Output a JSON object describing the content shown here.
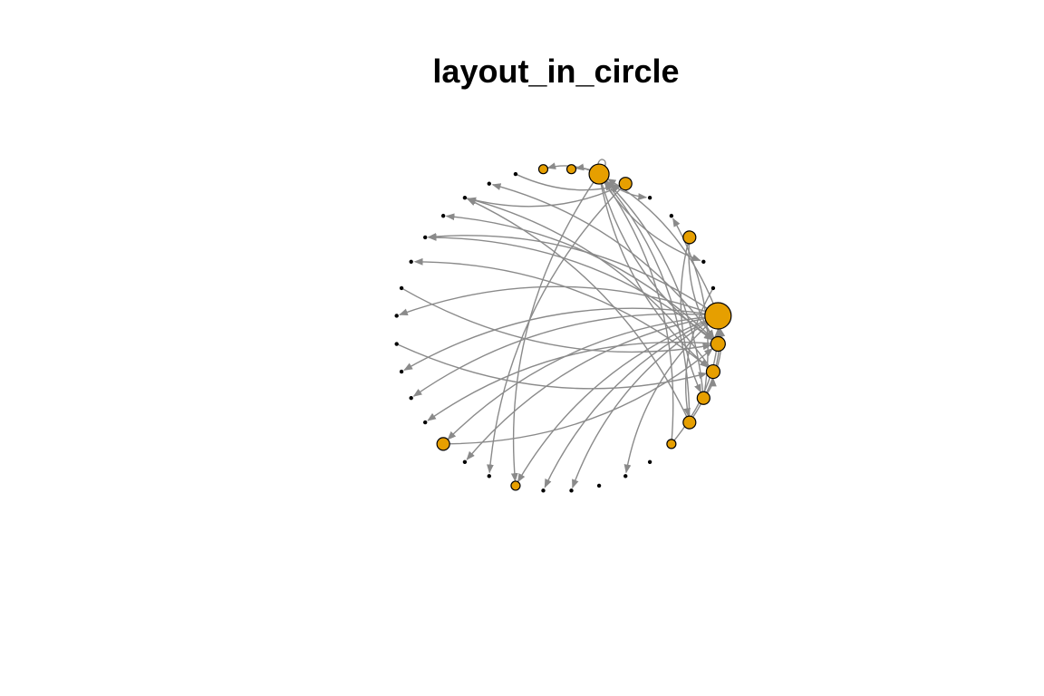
{
  "title": "layout_in_circle",
  "colors": {
    "vertex_fill": "#E69F00",
    "vertex_border": "#000000",
    "edge": "#8A8A8A",
    "background": "#FFFFFF"
  },
  "graph": {
    "layout": "circle",
    "node_count": 36,
    "nodes": [
      {
        "id": 0,
        "size": 2.5
      },
      {
        "id": 1,
        "size": 1.2
      },
      {
        "id": 2,
        "size": 1.1
      },
      {
        "id": 3,
        "size": 1.0
      },
      {
        "id": 4,
        "size": 1.0
      },
      {
        "id": 5,
        "size": 0.6
      },
      {
        "id": 6,
        "size": 0.4
      },
      {
        "id": 7,
        "size": 0.4
      },
      {
        "id": 8,
        "size": 0.3
      },
      {
        "id": 9,
        "size": 0.3
      },
      {
        "id": 10,
        "size": 0.4
      },
      {
        "id": 11,
        "size": 0.6
      },
      {
        "id": 12,
        "size": 0.4
      },
      {
        "id": 13,
        "size": 0.3
      },
      {
        "id": 14,
        "size": 1.0
      },
      {
        "id": 15,
        "size": 0.3
      },
      {
        "id": 16,
        "size": 0.3
      },
      {
        "id": 17,
        "size": 0.3
      },
      {
        "id": 18,
        "size": 0.3
      },
      {
        "id": 19,
        "size": 0.3
      },
      {
        "id": 20,
        "size": 0.3
      },
      {
        "id": 21,
        "size": 0.4
      },
      {
        "id": 22,
        "size": 0.3
      },
      {
        "id": 23,
        "size": 0.3
      },
      {
        "id": 24,
        "size": 0.3
      },
      {
        "id": 25,
        "size": 0.4
      },
      {
        "id": 26,
        "size": 0.4
      },
      {
        "id": 27,
        "size": 0.6
      },
      {
        "id": 28,
        "size": 0.6
      },
      {
        "id": 29,
        "size": 1.8
      },
      {
        "id": 30,
        "size": 1.0
      },
      {
        "id": 31,
        "size": 0.4
      },
      {
        "id": 32,
        "size": 0.3
      },
      {
        "id": 33,
        "size": 1.0
      },
      {
        "id": 34,
        "size": 0.4
      },
      {
        "id": 35,
        "size": 0.4
      }
    ],
    "edges": [
      [
        29,
        1
      ],
      [
        29,
        2
      ],
      [
        0,
        29
      ],
      [
        3,
        0
      ],
      [
        4,
        0
      ],
      [
        5,
        0
      ],
      [
        0,
        7
      ],
      [
        0,
        9
      ],
      [
        0,
        10
      ],
      [
        0,
        11
      ],
      [
        0,
        13
      ],
      [
        0,
        16
      ],
      [
        0,
        19
      ],
      [
        1,
        22
      ],
      [
        2,
        21
      ],
      [
        3,
        32
      ],
      [
        29,
        27
      ],
      [
        29,
        28
      ],
      [
        0,
        22
      ],
      [
        1,
        25
      ],
      [
        4,
        24
      ],
      [
        29,
        31
      ],
      [
        29,
        34
      ],
      [
        1,
        15
      ],
      [
        0,
        17
      ],
      [
        26,
        30
      ],
      [
        5,
        29
      ],
      [
        3,
        2
      ],
      [
        20,
        1
      ],
      [
        18,
        2
      ],
      [
        29,
        11
      ],
      [
        30,
        12
      ],
      [
        14,
        1
      ],
      [
        33,
        3
      ],
      [
        35,
        4
      ],
      [
        24,
        30
      ],
      [
        29,
        29
      ],
      [
        1,
        23
      ],
      [
        2,
        24
      ],
      [
        4,
        29
      ],
      [
        0,
        14
      ],
      [
        3,
        29
      ],
      [
        33,
        1
      ]
    ]
  }
}
